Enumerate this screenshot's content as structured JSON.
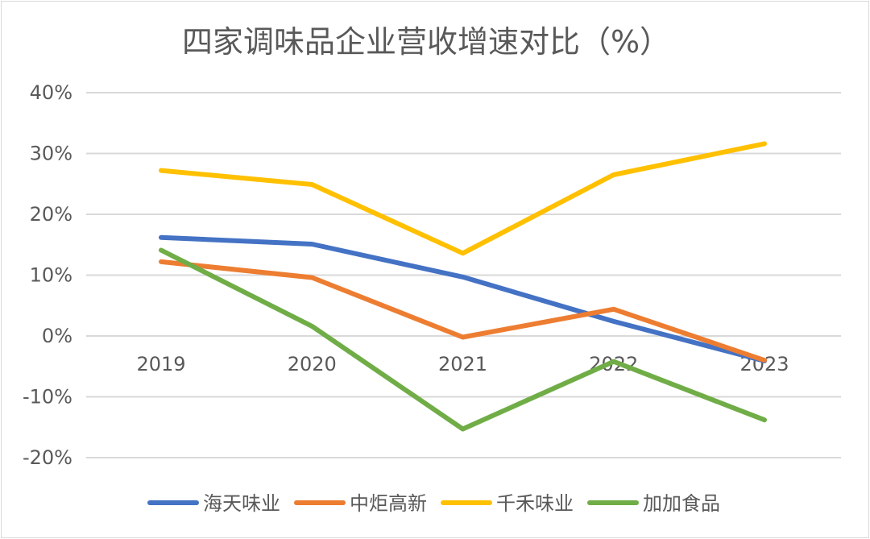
{
  "chart_data": {
    "type": "line",
    "title": "四家调味品企业营收增速对比（%）",
    "categories": [
      "2019",
      "2020",
      "2021",
      "2022",
      "2023"
    ],
    "y_tick_labels": [
      "40%",
      "30%",
      "20%",
      "10%",
      "0%",
      "-10%",
      "-20%"
    ],
    "ylim": [
      -20,
      40
    ],
    "y_step": 10,
    "grid": true,
    "xlabel": "",
    "ylabel": "",
    "legend_position": "bottom",
    "series": [
      {
        "name": "海天味业",
        "color": "#4472C4",
        "values": [
          16.2,
          15.1,
          9.7,
          2.4,
          -4.1
        ]
      },
      {
        "name": "中炬高新",
        "color": "#ED7D31",
        "values": [
          12.2,
          9.6,
          -0.2,
          4.4,
          -4.0
        ]
      },
      {
        "name": "千禾味业",
        "color": "#FFC000",
        "values": [
          27.2,
          24.9,
          13.6,
          26.5,
          31.6
        ]
      },
      {
        "name": "加加食品",
        "color": "#70AD47",
        "values": [
          14.1,
          1.6,
          -15.3,
          -4.2,
          -13.8
        ]
      }
    ]
  }
}
